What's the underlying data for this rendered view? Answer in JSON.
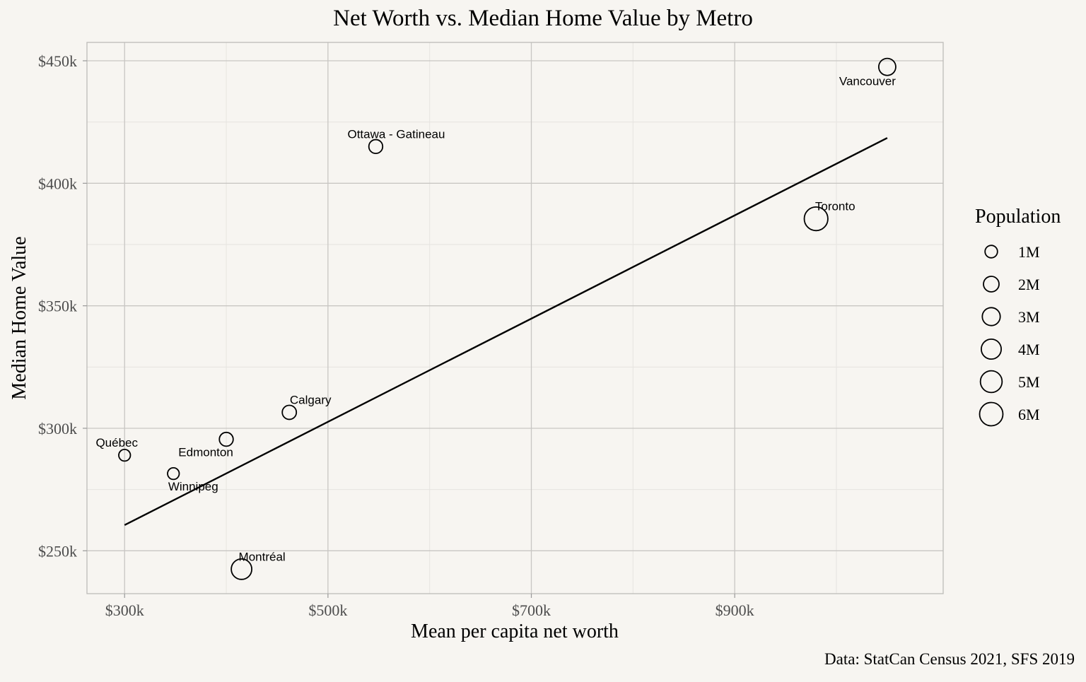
{
  "chart_data": {
    "type": "scatter",
    "title": "Net Worth vs. Median Home Value by Metro",
    "xlabel": "Mean per capita net worth",
    "ylabel": "Median Home Value",
    "caption": "Data: StatCan Census 2021, SFS 2019",
    "xlim": [
      263000,
      1105000
    ],
    "ylim": [
      232500,
      457500
    ],
    "x_ticks": [
      300000,
      500000,
      700000,
      900000
    ],
    "x_tick_labels": [
      "$300k",
      "$500k",
      "$700k",
      "$900k"
    ],
    "y_ticks": [
      250000,
      300000,
      350000,
      400000,
      450000
    ],
    "y_tick_labels": [
      "$250k",
      "$300k",
      "$350k",
      "$400k",
      "$450k"
    ],
    "grid": true,
    "points": [
      {
        "label": "Vancouver",
        "x": 1050000,
        "y": 447500,
        "population": 2.6
      },
      {
        "label": "Ottawa - Gatineau",
        "x": 547000,
        "y": 415000,
        "population": 1.4
      },
      {
        "label": "Toronto",
        "x": 980000,
        "y": 385500,
        "population": 6.2
      },
      {
        "label": "Calgary",
        "x": 462000,
        "y": 306500,
        "population": 1.5
      },
      {
        "label": "Edmonton",
        "x": 400000,
        "y": 295500,
        "population": 1.4
      },
      {
        "label": "Québec",
        "x": 300000,
        "y": 289000,
        "population": 0.8
      },
      {
        "label": "Winnipeg",
        "x": 348000,
        "y": 281500,
        "population": 0.8
      },
      {
        "label": "Montréal",
        "x": 415000,
        "y": 242500,
        "population": 4.3
      }
    ],
    "trend_line": {
      "x": [
        300000,
        1050000
      ],
      "y": [
        260500,
        418500
      ]
    },
    "size_legend": {
      "title": "Population",
      "placement": "right",
      "items": [
        {
          "label": "1M",
          "population": 1
        },
        {
          "label": "2M",
          "population": 2
        },
        {
          "label": "3M",
          "population": 3
        },
        {
          "label": "4M",
          "population": 4
        },
        {
          "label": "5M",
          "population": 5
        },
        {
          "label": "6M",
          "population": 6
        }
      ]
    }
  }
}
